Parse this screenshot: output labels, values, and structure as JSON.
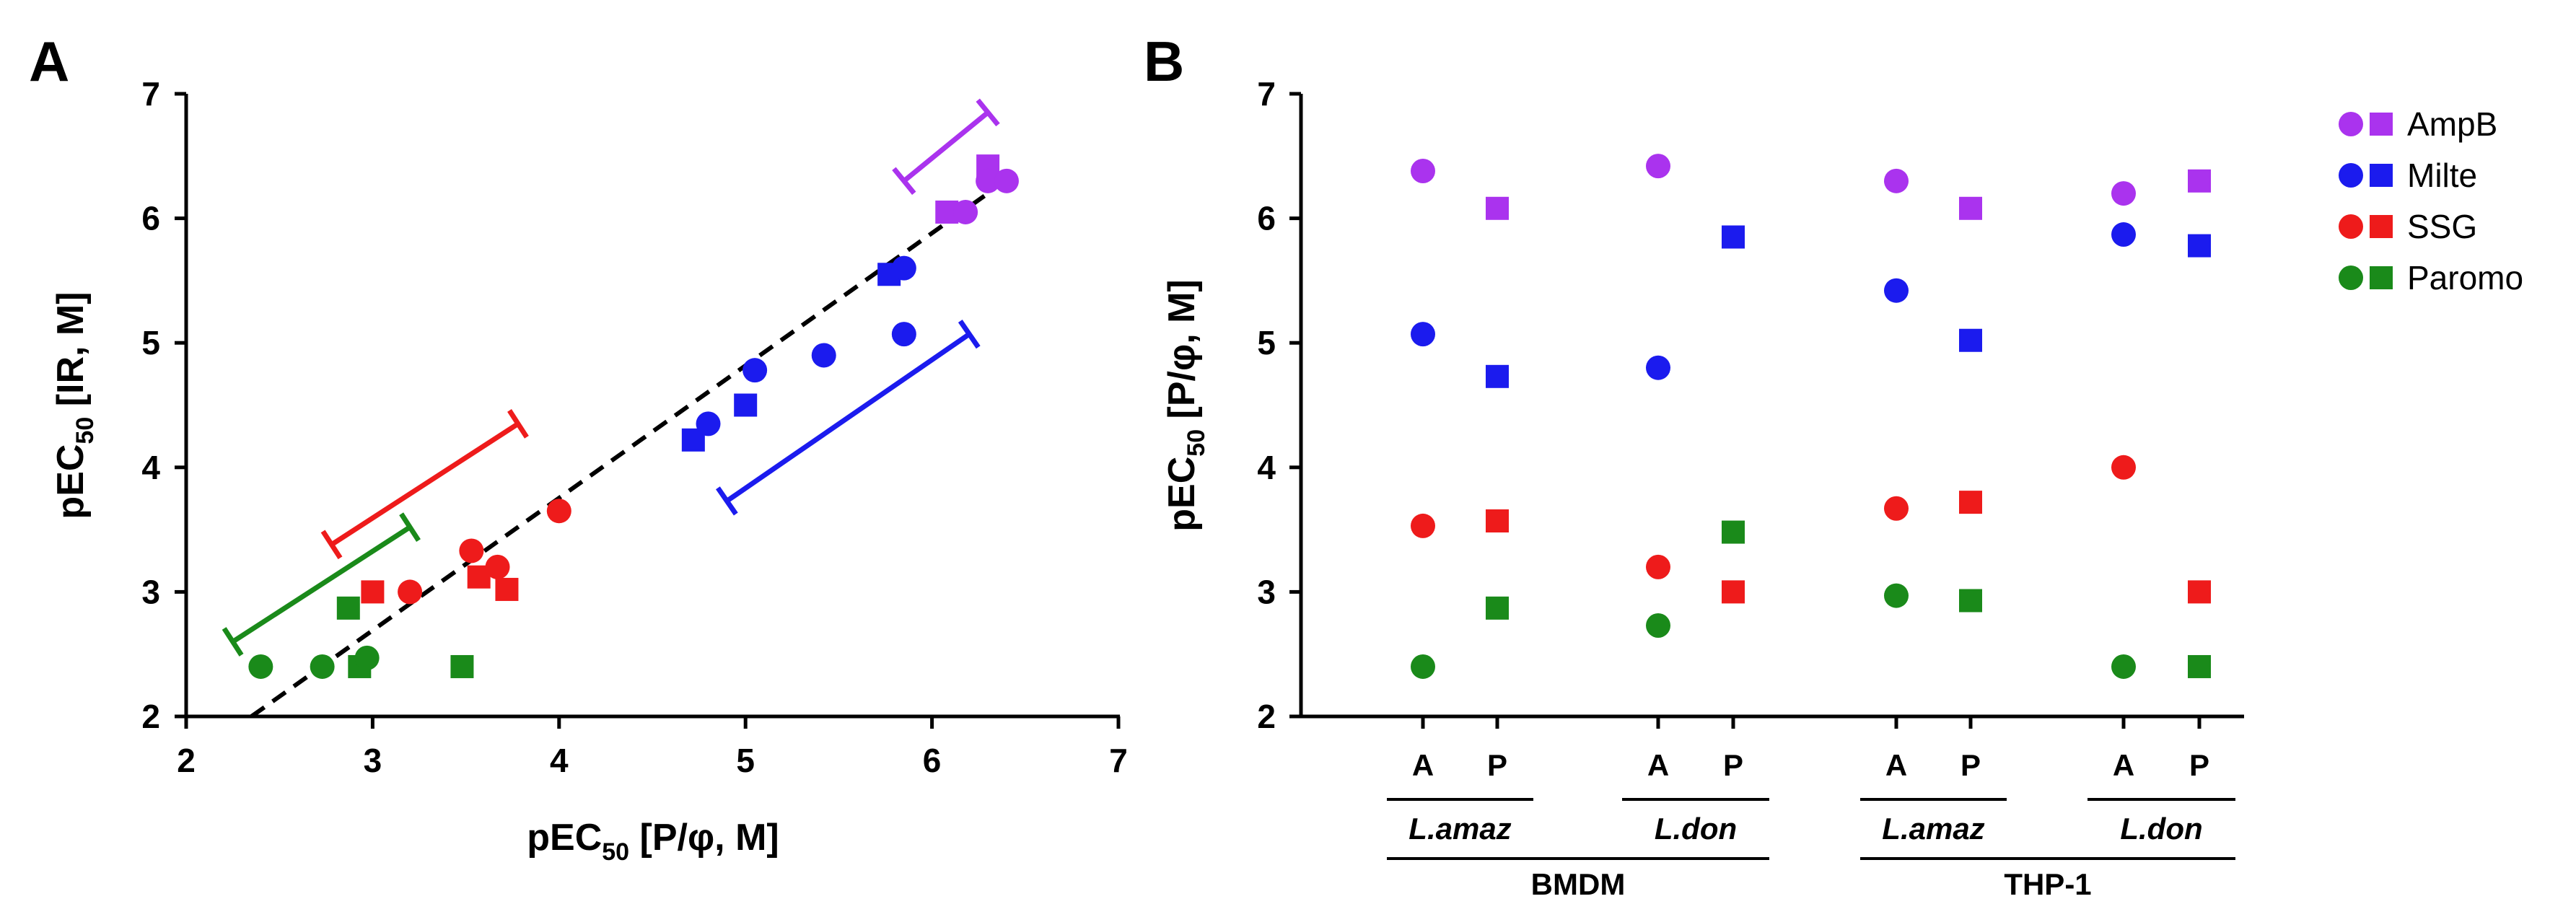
{
  "colors": {
    "AmpB": "#aa33ee",
    "Milte": "#1b1bee",
    "SSG": "#ee1b1b",
    "Paromo": "#1a8a1a",
    "axis": "#000000"
  },
  "chart_data": [
    {
      "panel": "A",
      "type": "scatter",
      "xlabel": "pEC50 [P/φ, M]",
      "ylabel": "pEC50 [IR, M]",
      "xlim": [
        2,
        7
      ],
      "ylim": [
        2,
        7
      ],
      "xticks": [
        "2",
        "3",
        "4",
        "5",
        "6",
        "7"
      ],
      "yticks": [
        "2",
        "3",
        "4",
        "5",
        "6",
        "7"
      ],
      "series": [
        {
          "name": "AmpB",
          "circles": [
            [
              6.18,
              6.05
            ],
            [
              6.3,
              6.3
            ],
            [
              6.4,
              6.3
            ]
          ],
          "squares": [
            [
              6.08,
              6.05
            ],
            [
              6.3,
              6.42
            ]
          ],
          "range_bar": [
            [
              5.85,
              6.3
            ],
            [
              6.3,
              6.85
            ]
          ]
        },
        {
          "name": "Milte",
          "circles": [
            [
              4.8,
              4.35
            ],
            [
              5.05,
              4.78
            ],
            [
              5.42,
              4.9
            ],
            [
              5.85,
              5.07
            ],
            [
              5.85,
              5.6
            ]
          ],
          "squares": [
            [
              4.72,
              4.22
            ],
            [
              5.0,
              4.5
            ],
            [
              5.77,
              5.55
            ]
          ],
          "range_bar": [
            [
              4.9,
              3.73
            ],
            [
              6.2,
              5.07
            ]
          ]
        },
        {
          "name": "SSG",
          "circles": [
            [
              3.2,
              3.0
            ],
            [
              3.53,
              3.33
            ],
            [
              3.67,
              3.2
            ],
            [
              4.0,
              3.65
            ]
          ],
          "squares": [
            [
              3.0,
              3.0
            ],
            [
              3.57,
              3.12
            ],
            [
              3.72,
              3.02
            ]
          ],
          "range_bar": [
            [
              2.78,
              3.38
            ],
            [
              3.78,
              4.35
            ]
          ]
        },
        {
          "name": "Paromo",
          "circles": [
            [
              2.4,
              2.4
            ],
            [
              2.73,
              2.4
            ],
            [
              2.97,
              2.47
            ]
          ],
          "squares": [
            [
              2.87,
              2.87
            ],
            [
              2.93,
              2.4
            ],
            [
              3.48,
              2.4
            ]
          ],
          "range_bar": [
            [
              2.25,
              2.6
            ],
            [
              3.2,
              3.52
            ]
          ]
        }
      ],
      "identity_line": [
        [
          2.35,
          2.0
        ],
        [
          6.3,
          6.2
        ]
      ]
    },
    {
      "panel": "B",
      "type": "scatter",
      "ylabel": "pEC50 [P/φ, M]",
      "ylim": [
        2,
        7
      ],
      "yticks": [
        "2",
        "3",
        "4",
        "5",
        "6",
        "7"
      ],
      "categories": [
        "A",
        "P",
        "A",
        "P",
        "A",
        "P",
        "A",
        "P"
      ],
      "group_labels": [
        "L.amaz",
        "L.don",
        "L.amaz",
        "L.don"
      ],
      "cell_labels": [
        "BMDM",
        "THP-1"
      ],
      "series": [
        {
          "name": "AmpB",
          "values": [
            6.38,
            6.08,
            6.42,
            5.85,
            6.3,
            6.08,
            6.2,
            6.3
          ]
        },
        {
          "name": "Milte",
          "values": [
            5.07,
            4.73,
            4.8,
            5.85,
            5.42,
            5.02,
            5.87,
            5.78
          ]
        },
        {
          "name": "SSG",
          "values": [
            3.53,
            3.57,
            3.2,
            3.0,
            3.67,
            3.72,
            4.0,
            3.0
          ]
        },
        {
          "name": "Paromo",
          "values": [
            2.4,
            2.87,
            2.73,
            3.48,
            2.97,
            2.93,
            2.4,
            2.4
          ]
        }
      ],
      "legend": [
        "AmpB",
        "Milte",
        "SSG",
        "Paromo"
      ]
    }
  ]
}
